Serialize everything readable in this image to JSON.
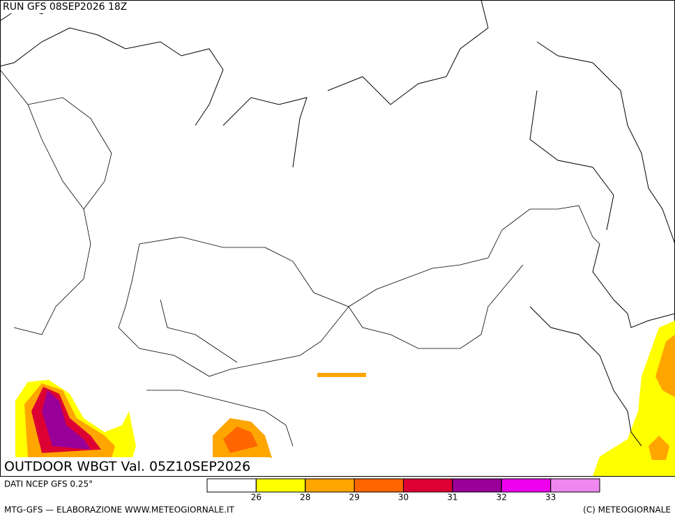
{
  "header": {
    "run": "RUN GFS 08SEP2026 18Z"
  },
  "map": {
    "title": "OUTDOOR WBGT Val. 05Z10SEP2026"
  },
  "legend": {
    "colors": [
      "#ffffff",
      "#ffff00",
      "#ffa500",
      "#ff6600",
      "#dd0033",
      "#990099",
      "#ee00ee",
      "#ee88ee"
    ],
    "ticks": [
      26,
      28,
      29,
      30,
      31,
      32,
      33
    ]
  },
  "footer": {
    "source": "DATI NCEP GFS 0.25°",
    "credit": "MTG-GFS — ELABORAZIONE WWW.METEOGIORNALE.IT",
    "copyright": "(C) METEOGIORNALE"
  }
}
